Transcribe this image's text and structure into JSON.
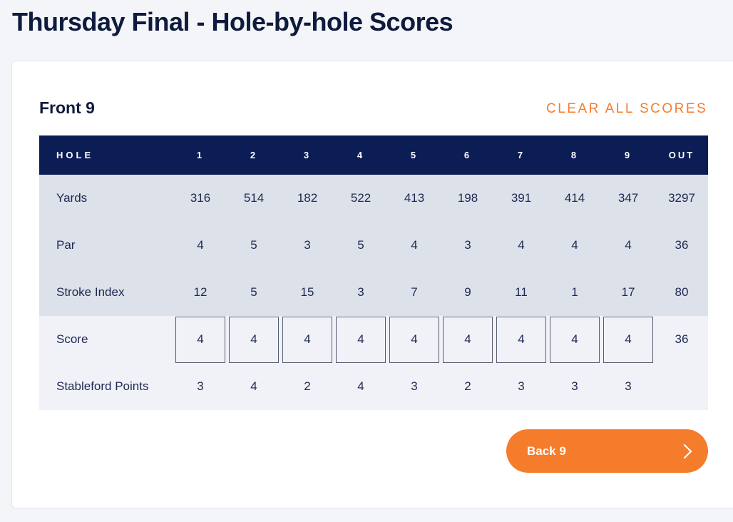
{
  "page": {
    "title": "Thursday Final - Hole-by-hole Scores"
  },
  "card": {
    "section_title": "Front 9",
    "clear_label": "CLEAR ALL SCORES",
    "next_label": "Back 9",
    "next_icon": "chevron-right-icon"
  },
  "colors": {
    "navy": "#0c1c54",
    "accent": "#f57c2b",
    "shade": "#dde1ea"
  },
  "scorecard": {
    "header": {
      "label": "HOLE",
      "holes": [
        "1",
        "2",
        "3",
        "4",
        "5",
        "6",
        "7",
        "8",
        "9"
      ],
      "total": "OUT"
    },
    "rows": [
      {
        "key": "yards",
        "label": "Yards",
        "values": [
          "316",
          "514",
          "182",
          "522",
          "413",
          "198",
          "391",
          "414",
          "347"
        ],
        "total": "3297"
      },
      {
        "key": "par",
        "label": "Par",
        "values": [
          "4",
          "5",
          "3",
          "5",
          "4",
          "3",
          "4",
          "4",
          "4"
        ],
        "total": "36"
      },
      {
        "key": "stroke-index",
        "label": "Stroke Index",
        "values": [
          "12",
          "5",
          "15",
          "3",
          "7",
          "9",
          "11",
          "1",
          "17"
        ],
        "total": "80"
      },
      {
        "key": "score",
        "label": "Score",
        "values": [
          "4",
          "4",
          "4",
          "4",
          "4",
          "4",
          "4",
          "4",
          "4"
        ],
        "total": "36",
        "editable": true
      },
      {
        "key": "stableford-points",
        "label": "Stableford Points",
        "values": [
          "3",
          "4",
          "2",
          "4",
          "3",
          "2",
          "3",
          "3",
          "3"
        ],
        "total": ""
      }
    ]
  }
}
